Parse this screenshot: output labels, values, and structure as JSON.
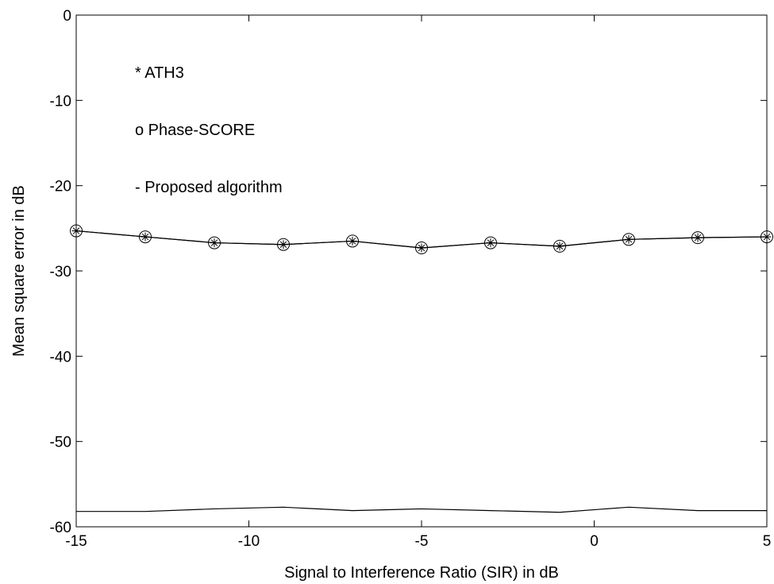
{
  "chart_data": {
    "type": "line",
    "title": "",
    "xlabel": "Signal to Interference Ratio (SIR) in dB",
    "ylabel": "Mean square error in dB",
    "xlim": [
      -15,
      5
    ],
    "ylim": [
      -60,
      0
    ],
    "xticks": [
      -15,
      -10,
      -5,
      0,
      5
    ],
    "yticks": [
      0,
      -10,
      -20,
      -30,
      -40,
      -50,
      -60
    ],
    "grid": false,
    "x": [
      -15,
      -13,
      -11,
      -9,
      -7,
      -5,
      -3,
      -1,
      1,
      3,
      5
    ],
    "series": [
      {
        "name": "ATH3",
        "marker": "asterisk",
        "values": [
          -25.3,
          -26.0,
          -26.7,
          -26.9,
          -26.5,
          -27.3,
          -26.7,
          -27.1,
          -26.3,
          -26.1,
          -26.0
        ]
      },
      {
        "name": "Phase-SCORE",
        "marker": "circle",
        "values": [
          -25.3,
          -26.0,
          -26.7,
          -26.9,
          -26.5,
          -27.3,
          -26.7,
          -27.1,
          -26.3,
          -26.1,
          -26.0
        ]
      },
      {
        "name": "Proposed algorithm",
        "marker": "none",
        "values": [
          -58.2,
          -58.2,
          -57.9,
          -57.7,
          -58.1,
          -57.9,
          -58.1,
          -58.3,
          -57.7,
          -58.1,
          -58.1
        ]
      }
    ],
    "annotations": [
      "* ATH3",
      "o Phase-SCORE",
      "- Proposed algorithm"
    ]
  }
}
